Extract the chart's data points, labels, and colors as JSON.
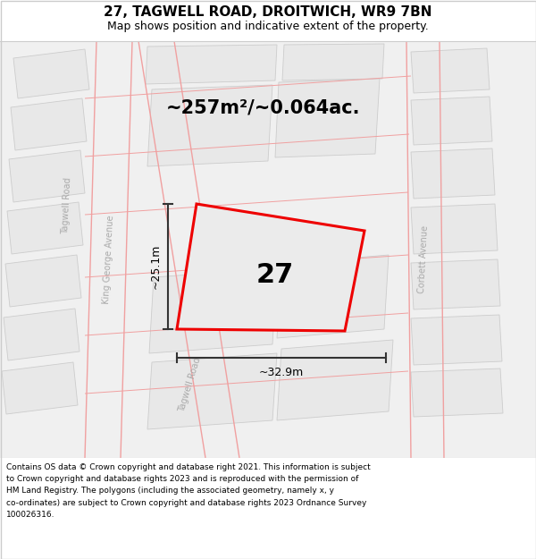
{
  "title_line1": "27, TAGWELL ROAD, DROITWICH, WR9 7BN",
  "title_line2": "Map shows position and indicative extent of the property.",
  "area_text": "~257m²/~0.064ac.",
  "property_number": "27",
  "dim_vertical": "~25.1m",
  "dim_horizontal": "~32.9m",
  "footer_lines": [
    "Contains OS data © Crown copyright and database right 2021. This information is subject",
    "to Crown copyright and database rights 2023 and is reproduced with the permission of",
    "HM Land Registry. The polygons (including the associated geometry, namely x, y",
    "co-ordinates) are subject to Crown copyright and database rights 2023 Ordnance Survey",
    "100026316."
  ],
  "white": "#ffffff",
  "black": "#000000",
  "pink_lines": "#f0a0a0",
  "map_bg": "#f0f0f0",
  "building_fill": "#e8e8e8",
  "building_edge": "#cccccc",
  "road_fill": "#e0e0e0",
  "red_outline": "#ee0000",
  "prop_fill": "#ebebeb",
  "dim_line_color": "#333333",
  "separator_color": "#cccccc",
  "road_label_color": "#aaaaaa",
  "title_fontsize": 11,
  "subtitle_fontsize": 9,
  "area_fontsize": 15,
  "prop_num_fontsize": 22,
  "dim_fontsize": 9,
  "road_label_fontsize": 7,
  "footer_fontsize": 6.5
}
